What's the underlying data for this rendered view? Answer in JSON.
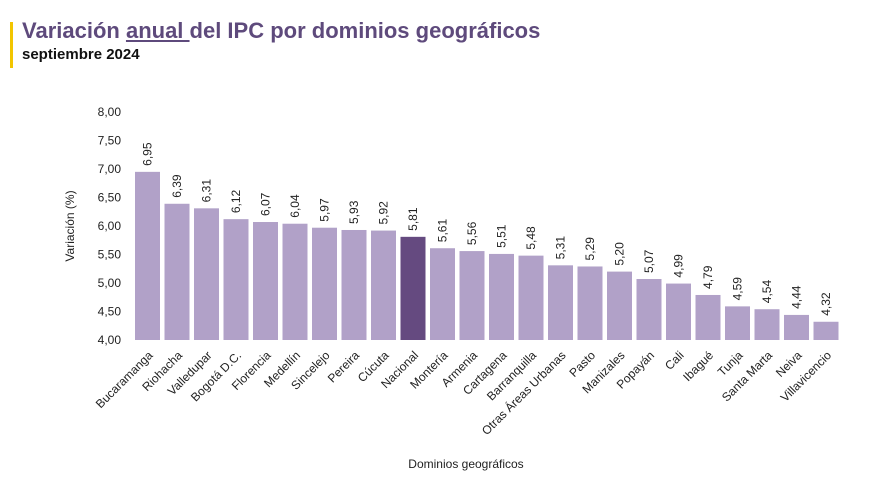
{
  "header": {
    "title_before": "Variación ",
    "title_underlined": "anual ",
    "title_after": "del IPC por dominios geográficos",
    "subtitle": "septiembre 2024"
  },
  "colors": {
    "bar": "#b1a1c8",
    "highlight": "#654a80",
    "accent": "#f2c500",
    "title": "#5e4a7c"
  },
  "chart_data": {
    "type": "bar",
    "title": "Variación anual del IPC por dominios geográficos",
    "subtitle": "septiembre 2024",
    "xlabel": "Dominios geográficos",
    "ylabel": "Variación (%)",
    "ylim": [
      4,
      8
    ],
    "yticks": [
      "4,00",
      "4,50",
      "5,00",
      "5,50",
      "6,00",
      "6,50",
      "7,00",
      "7,50",
      "8,00"
    ],
    "grid": false,
    "highlight": "Nacional",
    "categories": [
      "Bucaramanga",
      "Riohacha",
      "Valledupar",
      "Bogotá D.C.",
      "Florencia",
      "Medellín",
      "Sincelejo",
      "Pereira",
      "Cúcuta",
      "Nacional",
      "Montería",
      "Armenia",
      "Cartagena",
      "Barranquilla",
      "Otras Áreas Urbanas",
      "Pasto",
      "Manizales",
      "Popayán",
      "Cali",
      "Ibagué",
      "Tunja",
      "Santa Marta",
      "Neiva",
      "Villavicencio"
    ],
    "values": [
      6.95,
      6.39,
      6.31,
      6.12,
      6.07,
      6.04,
      5.97,
      5.93,
      5.92,
      5.81,
      5.61,
      5.56,
      5.51,
      5.48,
      5.31,
      5.29,
      5.2,
      5.07,
      4.99,
      4.79,
      4.59,
      4.54,
      4.44,
      4.32
    ],
    "labels": [
      "6,95",
      "6,39",
      "6,31",
      "6,12",
      "6,07",
      "6,04",
      "5,97",
      "5,93",
      "5,92",
      "5,81",
      "5,61",
      "5,56",
      "5,51",
      "5,48",
      "5,31",
      "5,29",
      "5,20",
      "5,07",
      "4,99",
      "4,79",
      "4,59",
      "4,54",
      "4,44",
      "4,32"
    ]
  }
}
